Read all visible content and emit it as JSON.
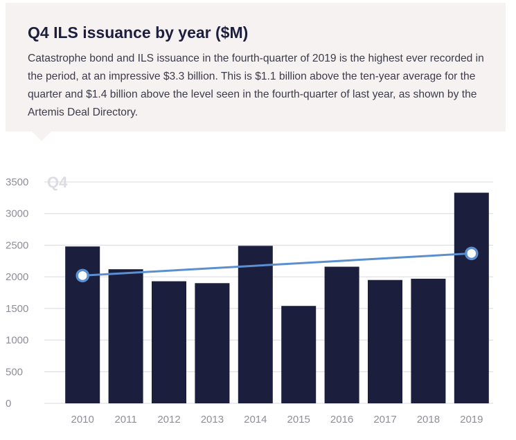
{
  "header": {
    "title": "Q4 ILS issuance by year ($M)",
    "description": "Catastrophe bond and ILS issuance in the fourth-quarter of 2019 is the highest ever recorded in the period, at an impressive $3.3 billion. This is $1.1 billion above the ten-year average for the quarter and $1.4 billion above the level seen in the fourth-quarter of last year, as shown by the Artemis Deal Directory."
  },
  "chart_data": {
    "type": "bar",
    "quarter_label": "Q4",
    "categories": [
      "2010",
      "2011",
      "2012",
      "2013",
      "2014",
      "2015",
      "2016",
      "2017",
      "2018",
      "2019"
    ],
    "series": [
      {
        "type": "bar",
        "values": [
          2480,
          2120,
          1930,
          1900,
          2490,
          1540,
          2160,
          1950,
          1970,
          3330
        ],
        "color": "#1c1e3d"
      },
      {
        "type": "line",
        "x": [
          "2010",
          "2019"
        ],
        "values": [
          2020,
          2370
        ],
        "color": "#5b8fd0"
      }
    ],
    "yticks": [
      0,
      500,
      1000,
      1500,
      2000,
      2500,
      3000,
      3500
    ],
    "ylim": [
      0,
      3500
    ],
    "grid": true,
    "colors": {
      "grid": "#d9d9de",
      "tick_text": "#8e8e98",
      "quarter_label": "#dcdce2"
    }
  }
}
